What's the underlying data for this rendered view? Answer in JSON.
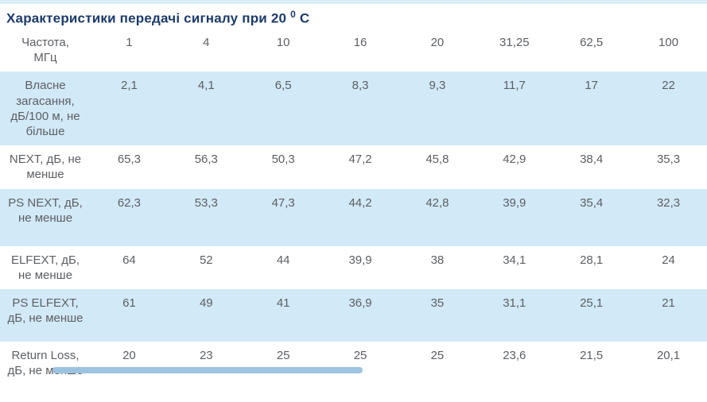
{
  "title": {
    "prefix": "Характеристики передачі сигналу при 20",
    "superscript": "0",
    "suffix": "С"
  },
  "colors": {
    "title_text": "#1b3a6b",
    "shaded_row_bg": "#d2e9f7",
    "top_strip_bg": "#d9edf8",
    "body_text": "#5c5f63",
    "scrollbar_thumb": "#9cc4e0"
  },
  "table": {
    "frequency_header": {
      "line1": "Частота,",
      "line2": "МГц"
    },
    "frequencies": [
      "1",
      "4",
      "10",
      "16",
      "20",
      "31,25",
      "62,5",
      "100"
    ],
    "rows": [
      {
        "label": "Власне загасання, дБ/100 м, не більше",
        "shaded": true,
        "values": [
          "2,1",
          "4,1",
          "6,5",
          "8,3",
          "9,3",
          "11,7",
          "17",
          "22"
        ]
      },
      {
        "label": "NEXT, дБ, не менше",
        "shaded": false,
        "values": [
          "65,3",
          "56,3",
          "50,3",
          "47,2",
          "45,8",
          "42,9",
          "38,4",
          "35,3"
        ]
      },
      {
        "label": "PS NEXT, дБ, не менше",
        "shaded": true,
        "values": [
          "62,3",
          "53,3",
          "47,3",
          "44,2",
          "42,8",
          "39,9",
          "35,4",
          "32,3"
        ]
      },
      {
        "label": "ELFEXT, дБ, не менше",
        "shaded": false,
        "values": [
          "64",
          "52",
          "44",
          "39,9",
          "38",
          "34,1",
          "28,1",
          "24"
        ]
      },
      {
        "label": "PS ELFEXT, дБ, не менше",
        "shaded": true,
        "values": [
          "61",
          "49",
          "41",
          "36,9",
          "35",
          "31,1",
          "25,1",
          "21"
        ]
      },
      {
        "label": "Return Loss, дБ, не менше",
        "shaded": false,
        "values": [
          "20",
          "23",
          "25",
          "25",
          "25",
          "23,6",
          "21,5",
          "20,1"
        ]
      }
    ]
  },
  "chart_data": {
    "type": "table",
    "title": "Характеристики передачі сигналу при 20 0 С",
    "columns": [
      "Частота, МГц",
      "1",
      "4",
      "10",
      "16",
      "20",
      "31,25",
      "62,5",
      "100"
    ],
    "rows": [
      [
        "Власне загасання, дБ/100 м, не більше",
        "2,1",
        "4,1",
        "6,5",
        "8,3",
        "9,3",
        "11,7",
        "17",
        "22"
      ],
      [
        "NEXT, дБ, не менше",
        "65,3",
        "56,3",
        "50,3",
        "47,2",
        "45,8",
        "42,9",
        "38,4",
        "35,3"
      ],
      [
        "PS NEXT, дБ, не менше",
        "62,3",
        "53,3",
        "47,3",
        "44,2",
        "42,8",
        "39,9",
        "35,4",
        "32,3"
      ],
      [
        "ELFEXT, дБ, не менше",
        "64",
        "52",
        "44",
        "39,9",
        "38",
        "34,1",
        "28,1",
        "24"
      ],
      [
        "PS ELFEXT, дБ, не менше",
        "61",
        "49",
        "41",
        "36,9",
        "35",
        "31,1",
        "25,1",
        "21"
      ],
      [
        "Return Loss, дБ, не менше",
        "20",
        "23",
        "25",
        "25",
        "25",
        "23,6",
        "21,5",
        "20,1"
      ]
    ]
  }
}
